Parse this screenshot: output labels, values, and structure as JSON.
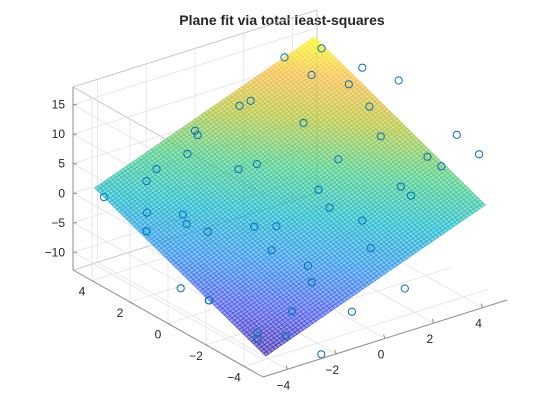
{
  "chart_data": {
    "type": "surface+scatter3d",
    "title": "Plane fit via total least-squares",
    "xlabel": "",
    "ylabel": "",
    "zlabel": "",
    "xlim": [
      -5,
      5
    ],
    "ylim": [
      -5,
      5
    ],
    "zlim": [
      -13,
      18
    ],
    "x_ticks": [
      -4,
      -2,
      0,
      2,
      4
    ],
    "y_ticks": [
      -4,
      -2,
      0,
      2,
      4
    ],
    "z_ticks": [
      -10,
      -5,
      0,
      5,
      10,
      15
    ],
    "grid": true,
    "colormap": "parula",
    "surface_alpha": 0.55,
    "plane": {
      "a": 1.54,
      "b": 1.35,
      "c": 2.0,
      "description": "z = a*x + b*y + c"
    },
    "scatter_color": "#0072bd",
    "points": [
      [
        4.1,
        3.6,
        15.2
      ],
      [
        3.2,
        4.4,
        13.4
      ],
      [
        4.6,
        2.1,
        14.0
      ],
      [
        1.5,
        4.0,
        9.0
      ],
      [
        0.5,
        3.3,
        10.7
      ],
      [
        -0.7,
        4.1,
        6.6
      ],
      [
        -1.4,
        3.6,
        4.5
      ],
      [
        -2.2,
        4.2,
        1.9
      ],
      [
        -3.0,
        3.7,
        1.8
      ],
      [
        -3.6,
        2.9,
        -1.3
      ],
      [
        -4.2,
        4.4,
        -0.6
      ],
      [
        2.6,
        2.2,
        15.2
      ],
      [
        3.5,
        1.4,
        13.9
      ],
      [
        1.8,
        1.6,
        9.2
      ],
      [
        0.2,
        2.0,
        3.6
      ],
      [
        -1.1,
        1.3,
        5.7
      ],
      [
        -2.6,
        2.1,
        -3.1
      ],
      [
        -3.3,
        1.4,
        0.7
      ],
      [
        -4.4,
        1.9,
        -1.6
      ],
      [
        4.3,
        -0.2,
        16.4
      ],
      [
        3.1,
        -0.8,
        9.6
      ],
      [
        1.9,
        -0.1,
        6.0
      ],
      [
        0.7,
        -0.6,
        3.3
      ],
      [
        -0.4,
        0.2,
        -2.9
      ],
      [
        -1.7,
        -0.3,
        -0.4
      ],
      [
        -2.9,
        0.6,
        -1.3
      ],
      [
        -3.7,
        -0.5,
        -9.9
      ],
      [
        -4.4,
        0.1,
        -8.0
      ],
      [
        4.0,
        -2.1,
        7.3
      ],
      [
        2.6,
        -2.5,
        4.8
      ],
      [
        1.4,
        -2.0,
        -0.3
      ],
      [
        0.3,
        -1.7,
        2.8
      ],
      [
        -0.9,
        -2.3,
        -7.2
      ],
      [
        -2.0,
        -1.6,
        -1.6
      ],
      [
        -3.2,
        -2.4,
        -12.5
      ],
      [
        -4.5,
        -1.5,
        -7.0
      ],
      [
        3.4,
        -3.6,
        9.2
      ],
      [
        2.0,
        -3.8,
        6.4
      ],
      [
        0.9,
        -3.1,
        -2.3
      ],
      [
        -0.5,
        -3.9,
        -9.8
      ],
      [
        -1.6,
        -3.0,
        -2.2
      ],
      [
        -2.8,
        -3.7,
        -7.1
      ],
      [
        -3.9,
        -3.3,
        -11.1
      ],
      [
        4.4,
        -4.3,
        11.2
      ],
      [
        1.2,
        -4.5,
        -7.0
      ],
      [
        -2.3,
        -4.6,
        -13.4
      ],
      [
        -3.6,
        -4.4,
        -9.0
      ],
      [
        4.5,
        -3.0,
        12.0
      ],
      [
        3.8,
        0.7,
        11.0
      ],
      [
        -0.2,
        4.6,
        4.3
      ]
    ]
  }
}
